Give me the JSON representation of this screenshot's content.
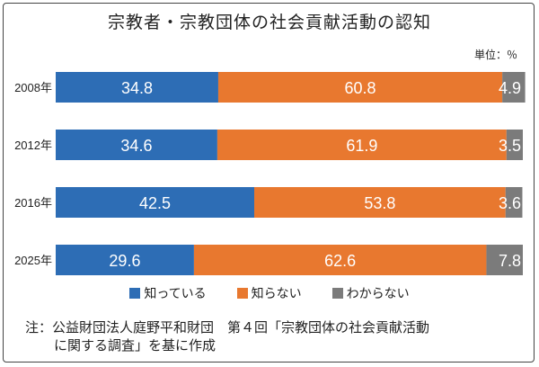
{
  "title": "宗教者・宗教団体の社会貢献活動の認知",
  "unit_label": "単位：％",
  "chart_data": {
    "type": "bar",
    "orientation": "horizontal-stacked-100",
    "title": "宗教者・宗教団体の社会貢献活動の認知",
    "categories": [
      "2008年",
      "2012年",
      "2016年",
      "2025年"
    ],
    "series": [
      {
        "name": "知っている",
        "color": "#2d6db5",
        "values": [
          34.8,
          34.6,
          42.5,
          29.6
        ]
      },
      {
        "name": "知らない",
        "color": "#e8782f",
        "values": [
          60.8,
          61.9,
          53.8,
          62.6
        ]
      },
      {
        "name": "わからない",
        "color": "#7b7b7b",
        "values": [
          4.9,
          3.5,
          3.6,
          7.8
        ]
      }
    ],
    "xlim": [
      0,
      100
    ],
    "unit": "％"
  },
  "note": {
    "line1": "注：公益財団法人庭野平和財団　第４回「宗教団体の社会貢献活動",
    "line2": "に関する調査」を基に作成"
  }
}
